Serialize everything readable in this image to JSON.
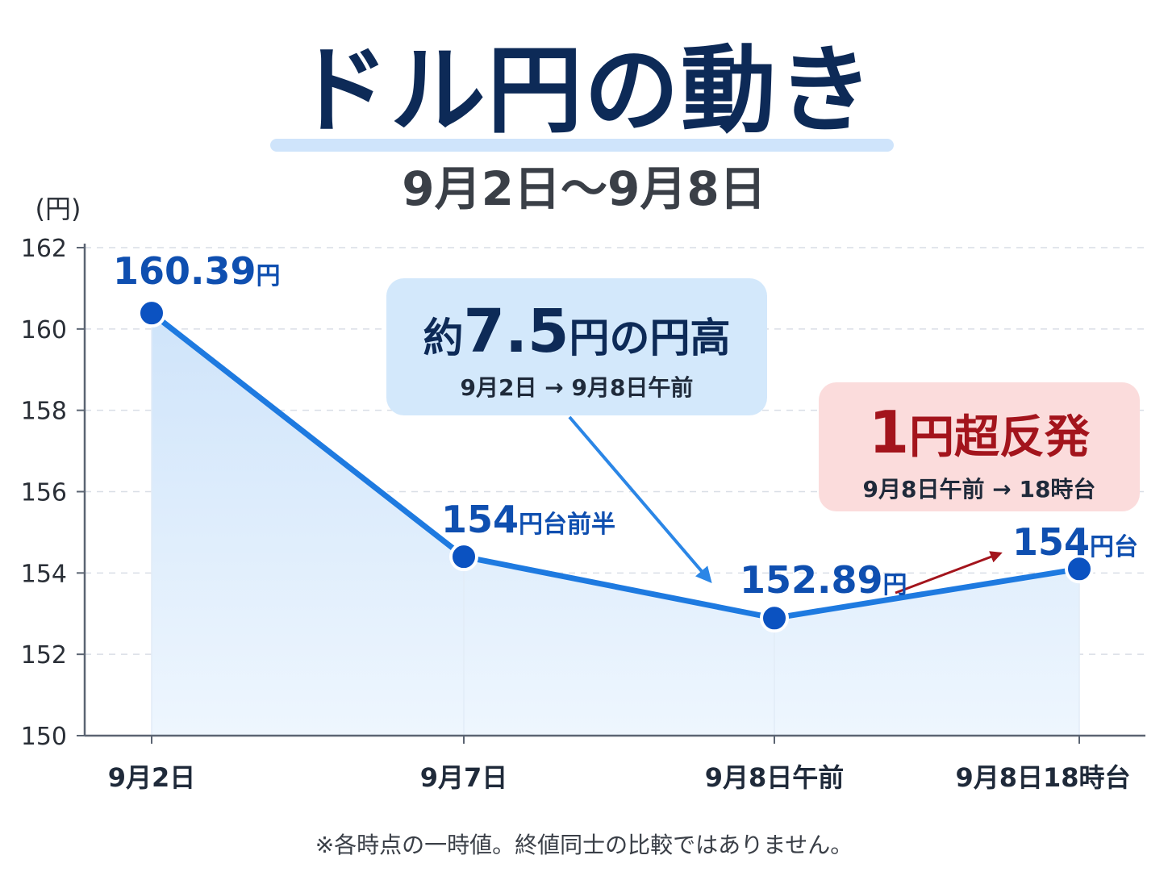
{
  "title": "ドル円の動き",
  "subtitle": "9月2日～9月8日",
  "note": "※各時点の一時値。終値同士の比較ではありません。",
  "callouts": {
    "drop": {
      "prefix": "約",
      "value": "7.5",
      "suffix": "円の円高",
      "detail": "9月2日 → 9月8日午前"
    },
    "rebound": {
      "value": "1",
      "suffix": "円超反発",
      "detail": "9月8日午前 → 18時台"
    }
  },
  "colors": {
    "line": "#1e7ae0",
    "point": "#0b52c1",
    "area": "#d6e9fb",
    "drop_arrow": "#2b86e6",
    "rebound_arrow": "#a3141c"
  },
  "chart_data": {
    "type": "area",
    "ylabel": "(円)",
    "xlabel": "",
    "ylim": [
      150,
      162
    ],
    "yticks": [
      "150",
      "152",
      "154",
      "156",
      "158",
      "160",
      "162"
    ],
    "grid": true,
    "categories": [
      "9月2日",
      "9月7日",
      "9月8日午前",
      "9月8日18時台"
    ],
    "values": [
      160.39,
      154.4,
      152.89,
      154.1
    ],
    "point_labels": [
      {
        "num": "160.39",
        "unit": "円"
      },
      {
        "num": "154",
        "unit": "円台前半"
      },
      {
        "num": "152.89",
        "unit": "円"
      },
      {
        "num": "154",
        "unit": "円台"
      }
    ]
  }
}
